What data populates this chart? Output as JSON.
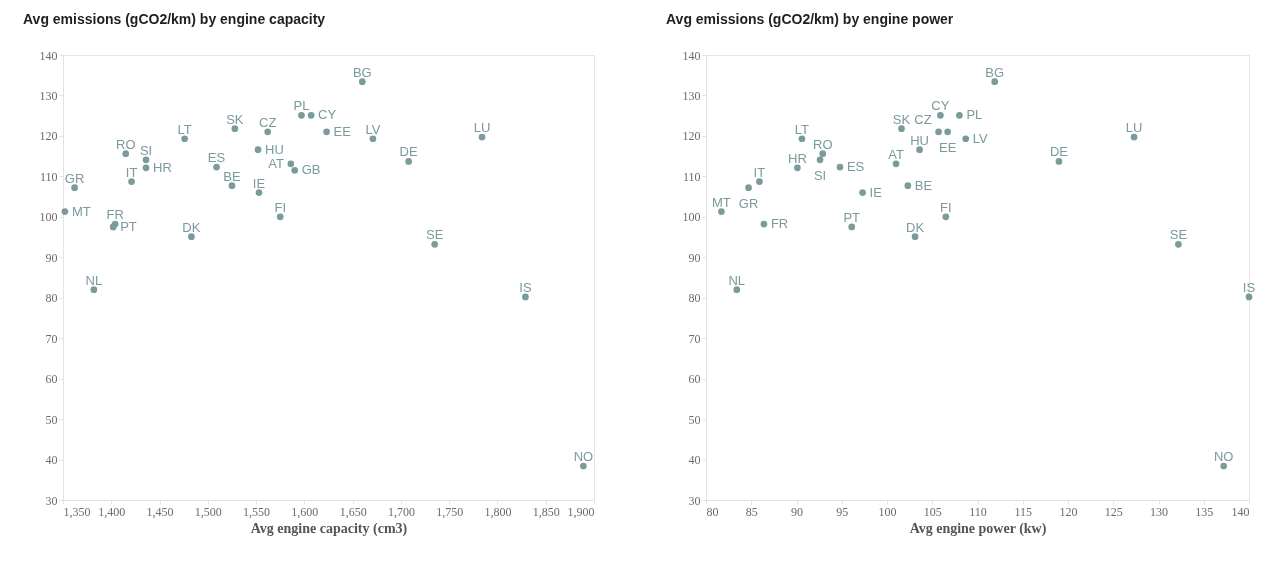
{
  "chart_data": [
    {
      "type": "scatter",
      "title": "Avg emissions (gCO2/km) by engine capacity",
      "xlabel": "Avg engine capacity (cm3)",
      "marker": "circle",
      "xlim": [
        1350,
        1900
      ],
      "xticks": [
        {
          "value": 1350,
          "label": "1,350"
        },
        {
          "value": 1400,
          "label": "1,400"
        },
        {
          "value": 1450,
          "label": "1,450"
        },
        {
          "value": 1500,
          "label": "1,500"
        },
        {
          "value": 1550,
          "label": "1,550"
        },
        {
          "value": 1600,
          "label": "1,600"
        },
        {
          "value": 1650,
          "label": "1,650"
        },
        {
          "value": 1700,
          "label": "1,700"
        },
        {
          "value": 1750,
          "label": "1,750"
        },
        {
          "value": 1800,
          "label": "1,800"
        },
        {
          "value": 1850,
          "label": "1,850"
        },
        {
          "value": 1900,
          "label": "1,900"
        }
      ],
      "ylim": [
        30,
        140
      ],
      "yticks": [
        30,
        40,
        50,
        60,
        70,
        80,
        90,
        100,
        110,
        120,
        130,
        140
      ],
      "series": [
        {
          "color": "#7a9a9c",
          "x": [
            1352,
            1362,
            1382,
            1404,
            1402,
            1415,
            1421,
            1436,
            1436,
            1476,
            1483,
            1509,
            1525,
            1528,
            1552,
            1553,
            1562,
            1575,
            1586,
            1590,
            1597,
            1607,
            1623,
            1660,
            1671,
            1708,
            1784,
            1735,
            1829,
            1889
          ],
          "values": [
            101.3,
            107.2,
            82.0,
            98.2,
            97.5,
            115.6,
            108.7,
            114.1,
            112.1,
            119.3,
            95.1,
            112.3,
            107.7,
            121.8,
            116.6,
            106.0,
            121.0,
            100.0,
            113.1,
            111.5,
            125.1,
            125.1,
            121.0,
            133.4,
            119.3,
            113.7,
            119.7,
            93.2,
            80.2,
            38.4
          ]
        }
      ],
      "annotations": [
        {
          "text": "MT",
          "x": 1352,
          "y": 101.3
        },
        {
          "text": "GR",
          "x": 1362,
          "y": 107.2
        },
        {
          "text": "NL",
          "x": 1382,
          "y": 82.0
        },
        {
          "text": "FR",
          "x": 1404,
          "y": 98.2
        },
        {
          "text": "PT",
          "x": 1402,
          "y": 97.5
        },
        {
          "text": "RO",
          "x": 1415,
          "y": 115.6
        },
        {
          "text": "IT",
          "x": 1421,
          "y": 108.7
        },
        {
          "text": "SI",
          "x": 1436,
          "y": 114.1
        },
        {
          "text": "HR",
          "x": 1436,
          "y": 112.1
        },
        {
          "text": "LT",
          "x": 1476,
          "y": 119.3
        },
        {
          "text": "DK",
          "x": 1483,
          "y": 95.1
        },
        {
          "text": "ES",
          "x": 1509,
          "y": 112.3
        },
        {
          "text": "BE",
          "x": 1525,
          "y": 107.7
        },
        {
          "text": "SK",
          "x": 1528,
          "y": 121.8
        },
        {
          "text": "HU",
          "x": 1552,
          "y": 116.6
        },
        {
          "text": "IE",
          "x": 1553,
          "y": 106.0
        },
        {
          "text": "CZ",
          "x": 1562,
          "y": 121.0
        },
        {
          "text": "FI",
          "x": 1575,
          "y": 100.0
        },
        {
          "text": "AT",
          "x": 1586,
          "y": 113.1
        },
        {
          "text": "GB",
          "x": 1590,
          "y": 111.5
        },
        {
          "text": "PL",
          "x": 1597,
          "y": 125.1
        },
        {
          "text": "CY",
          "x": 1607,
          "y": 125.1
        },
        {
          "text": "EE",
          "x": 1623,
          "y": 121.0
        },
        {
          "text": "BG",
          "x": 1660,
          "y": 133.4
        },
        {
          "text": "LV",
          "x": 1671,
          "y": 119.3
        },
        {
          "text": "DE",
          "x": 1708,
          "y": 113.7
        },
        {
          "text": "LU",
          "x": 1784,
          "y": 119.7
        },
        {
          "text": "SE",
          "x": 1735,
          "y": 93.2
        },
        {
          "text": "IS",
          "x": 1829,
          "y": 80.2
        },
        {
          "text": "NO",
          "x": 1889,
          "y": 38.4
        }
      ]
    },
    {
      "type": "scatter",
      "title": "Avg emissions (gCO2/km) by engine power",
      "xlabel": "Avg engine power (kw)",
      "marker": "circle",
      "xlim": [
        80,
        140
      ],
      "xticks": [
        80,
        85,
        90,
        95,
        100,
        105,
        110,
        115,
        120,
        125,
        130,
        135,
        140
      ],
      "ylim": [
        30,
        140
      ],
      "yticks": [
        30,
        40,
        50,
        60,
        70,
        80,
        90,
        100,
        110,
        120,
        130,
        140
      ],
      "series": [
        {
          "color": "#7a9a9c",
          "x": [
            81.7,
            83.4,
            84.7,
            85.9,
            86.4,
            90.1,
            90.6,
            92.6,
            92.9,
            94.8,
            96.1,
            97.3,
            101.0,
            102.3,
            101.6,
            103.1,
            103.6,
            105.9,
            105.7,
            106.7,
            106.5,
            108.0,
            108.7,
            111.9,
            119.0,
            127.3,
            132.2,
            140,
            137.2
          ],
          "values": [
            101.3,
            82.0,
            107.2,
            108.7,
            98.2,
            112.1,
            119.3,
            114.1,
            115.6,
            112.3,
            97.5,
            106.0,
            113.1,
            107.7,
            121.8,
            95.1,
            116.6,
            125.1,
            121.0,
            121.0,
            100.0,
            125.1,
            119.3,
            133.4,
            113.7,
            119.7,
            93.2,
            80.2,
            38.4
          ]
        }
      ],
      "annotations": [
        {
          "text": "MT",
          "x": 81.7,
          "y": 101.3
        },
        {
          "text": "NL",
          "x": 83.4,
          "y": 82.0
        },
        {
          "text": "GR",
          "x": 84.7,
          "y": 107.2
        },
        {
          "text": "IT",
          "x": 85.9,
          "y": 108.7
        },
        {
          "text": "FR",
          "x": 86.4,
          "y": 98.2
        },
        {
          "text": "HR",
          "x": 90.1,
          "y": 112.1
        },
        {
          "text": "LT",
          "x": 90.6,
          "y": 119.3
        },
        {
          "text": "SI",
          "x": 92.6,
          "y": 114.1
        },
        {
          "text": "RO",
          "x": 92.9,
          "y": 115.6
        },
        {
          "text": "ES",
          "x": 94.8,
          "y": 112.3
        },
        {
          "text": "PT",
          "x": 96.1,
          "y": 97.5
        },
        {
          "text": "IE",
          "x": 97.3,
          "y": 106.0
        },
        {
          "text": "AT",
          "x": 101.0,
          "y": 113.1
        },
        {
          "text": "BE",
          "x": 102.3,
          "y": 107.7
        },
        {
          "text": "SK",
          "x": 101.6,
          "y": 121.8
        },
        {
          "text": "DK",
          "x": 103.1,
          "y": 95.1
        },
        {
          "text": "HU",
          "x": 103.6,
          "y": 116.6
        },
        {
          "text": "CY",
          "x": 105.9,
          "y": 125.1
        },
        {
          "text": "CZ",
          "x": 105.7,
          "y": 121.0
        },
        {
          "text": "EE",
          "x": 106.7,
          "y": 121.0
        },
        {
          "text": "FI",
          "x": 106.5,
          "y": 100.0
        },
        {
          "text": "PL",
          "x": 108.0,
          "y": 125.1
        },
        {
          "text": "LV",
          "x": 108.7,
          "y": 119.3
        },
        {
          "text": "BG",
          "x": 111.9,
          "y": 133.4
        },
        {
          "text": "DE",
          "x": 119.0,
          "y": 113.7
        },
        {
          "text": "LU",
          "x": 127.3,
          "y": 119.7
        },
        {
          "text": "SE",
          "x": 132.2,
          "y": 93.2
        },
        {
          "text": "IS",
          "x": 140,
          "y": 80.2
        },
        {
          "text": "NO",
          "x": 137.2,
          "y": 38.4
        }
      ]
    }
  ]
}
